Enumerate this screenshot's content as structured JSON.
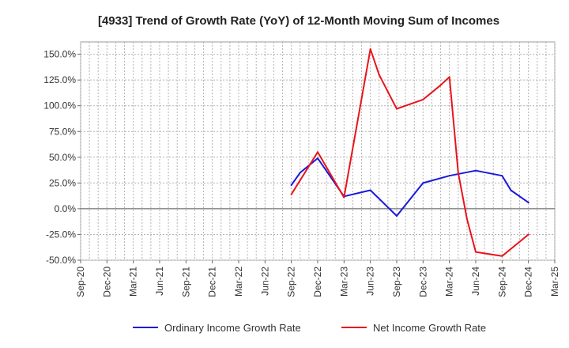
{
  "chart_data": {
    "type": "line",
    "title": "[4933]  Trend of Growth Rate (YoY) of 12-Month Moving Sum of Incomes",
    "xlabel": "",
    "ylabel": "",
    "x_ticks": [
      "Sep-20",
      "Dec-20",
      "Mar-21",
      "Jun-21",
      "Sep-21",
      "Dec-21",
      "Mar-22",
      "Jun-22",
      "Sep-22",
      "Dec-22",
      "Mar-23",
      "Jun-23",
      "Sep-23",
      "Dec-23",
      "Mar-24",
      "Jun-24",
      "Sep-24",
      "Dec-24",
      "Mar-25"
    ],
    "y_ticks": [
      150.0,
      125.0,
      100.0,
      75.0,
      50.0,
      25.0,
      0.0,
      -25.0,
      -50.0
    ],
    "y_tick_labels": [
      "150.0%",
      "125.0%",
      "100.0%",
      "75.0%",
      "50.0%",
      "25.0%",
      "0.0%",
      "-25.0%",
      "-50.0%"
    ],
    "ylim": [
      -50,
      162
    ],
    "grid": true,
    "legend_position": "bottom",
    "series": [
      {
        "name": "Ordinary Income Growth Rate",
        "color": "#1a1adb",
        "x": [
          "Sep-22",
          "Oct-22",
          "Nov-22",
          "Dec-22",
          "Jan-23",
          "Feb-23",
          "Mar-23",
          "Apr-23",
          "May-23",
          "Jun-23",
          "Jul-23",
          "Aug-23",
          "Sep-23",
          "Oct-23",
          "Nov-23",
          "Dec-23",
          "Jan-24",
          "Feb-24",
          "Mar-24",
          "Apr-24",
          "May-24",
          "Jun-24",
          "Jul-24",
          "Aug-24",
          "Sep-24",
          "Oct-24",
          "Nov-24",
          "Dec-24"
        ],
        "values": [
          23,
          35,
          null,
          49,
          null,
          null,
          12,
          null,
          null,
          18,
          null,
          null,
          -7,
          null,
          null,
          25,
          null,
          null,
          32,
          null,
          null,
          37,
          null,
          null,
          32,
          18,
          null,
          6
        ]
      },
      {
        "name": "Net Income Growth Rate",
        "color": "#e8141c",
        "x": [
          "Sep-22",
          "Oct-22",
          "Nov-22",
          "Dec-22",
          "Jan-23",
          "Feb-23",
          "Mar-23",
          "Apr-23",
          "May-23",
          "Jun-23",
          "Jul-23",
          "Aug-23",
          "Sep-23",
          "Oct-23",
          "Nov-23",
          "Dec-23",
          "Jan-24",
          "Feb-24",
          "Mar-24",
          "Apr-24",
          "May-24",
          "Jun-24",
          "Jul-24",
          "Aug-24",
          "Sep-24",
          "Oct-24",
          "Nov-24",
          "Dec-24"
        ],
        "values": [
          14,
          null,
          null,
          55,
          null,
          null,
          11,
          null,
          null,
          155,
          130,
          null,
          97,
          null,
          null,
          106,
          null,
          120,
          128,
          35,
          -10,
          -42,
          null,
          null,
          -46,
          null,
          null,
          -25
        ]
      }
    ]
  }
}
